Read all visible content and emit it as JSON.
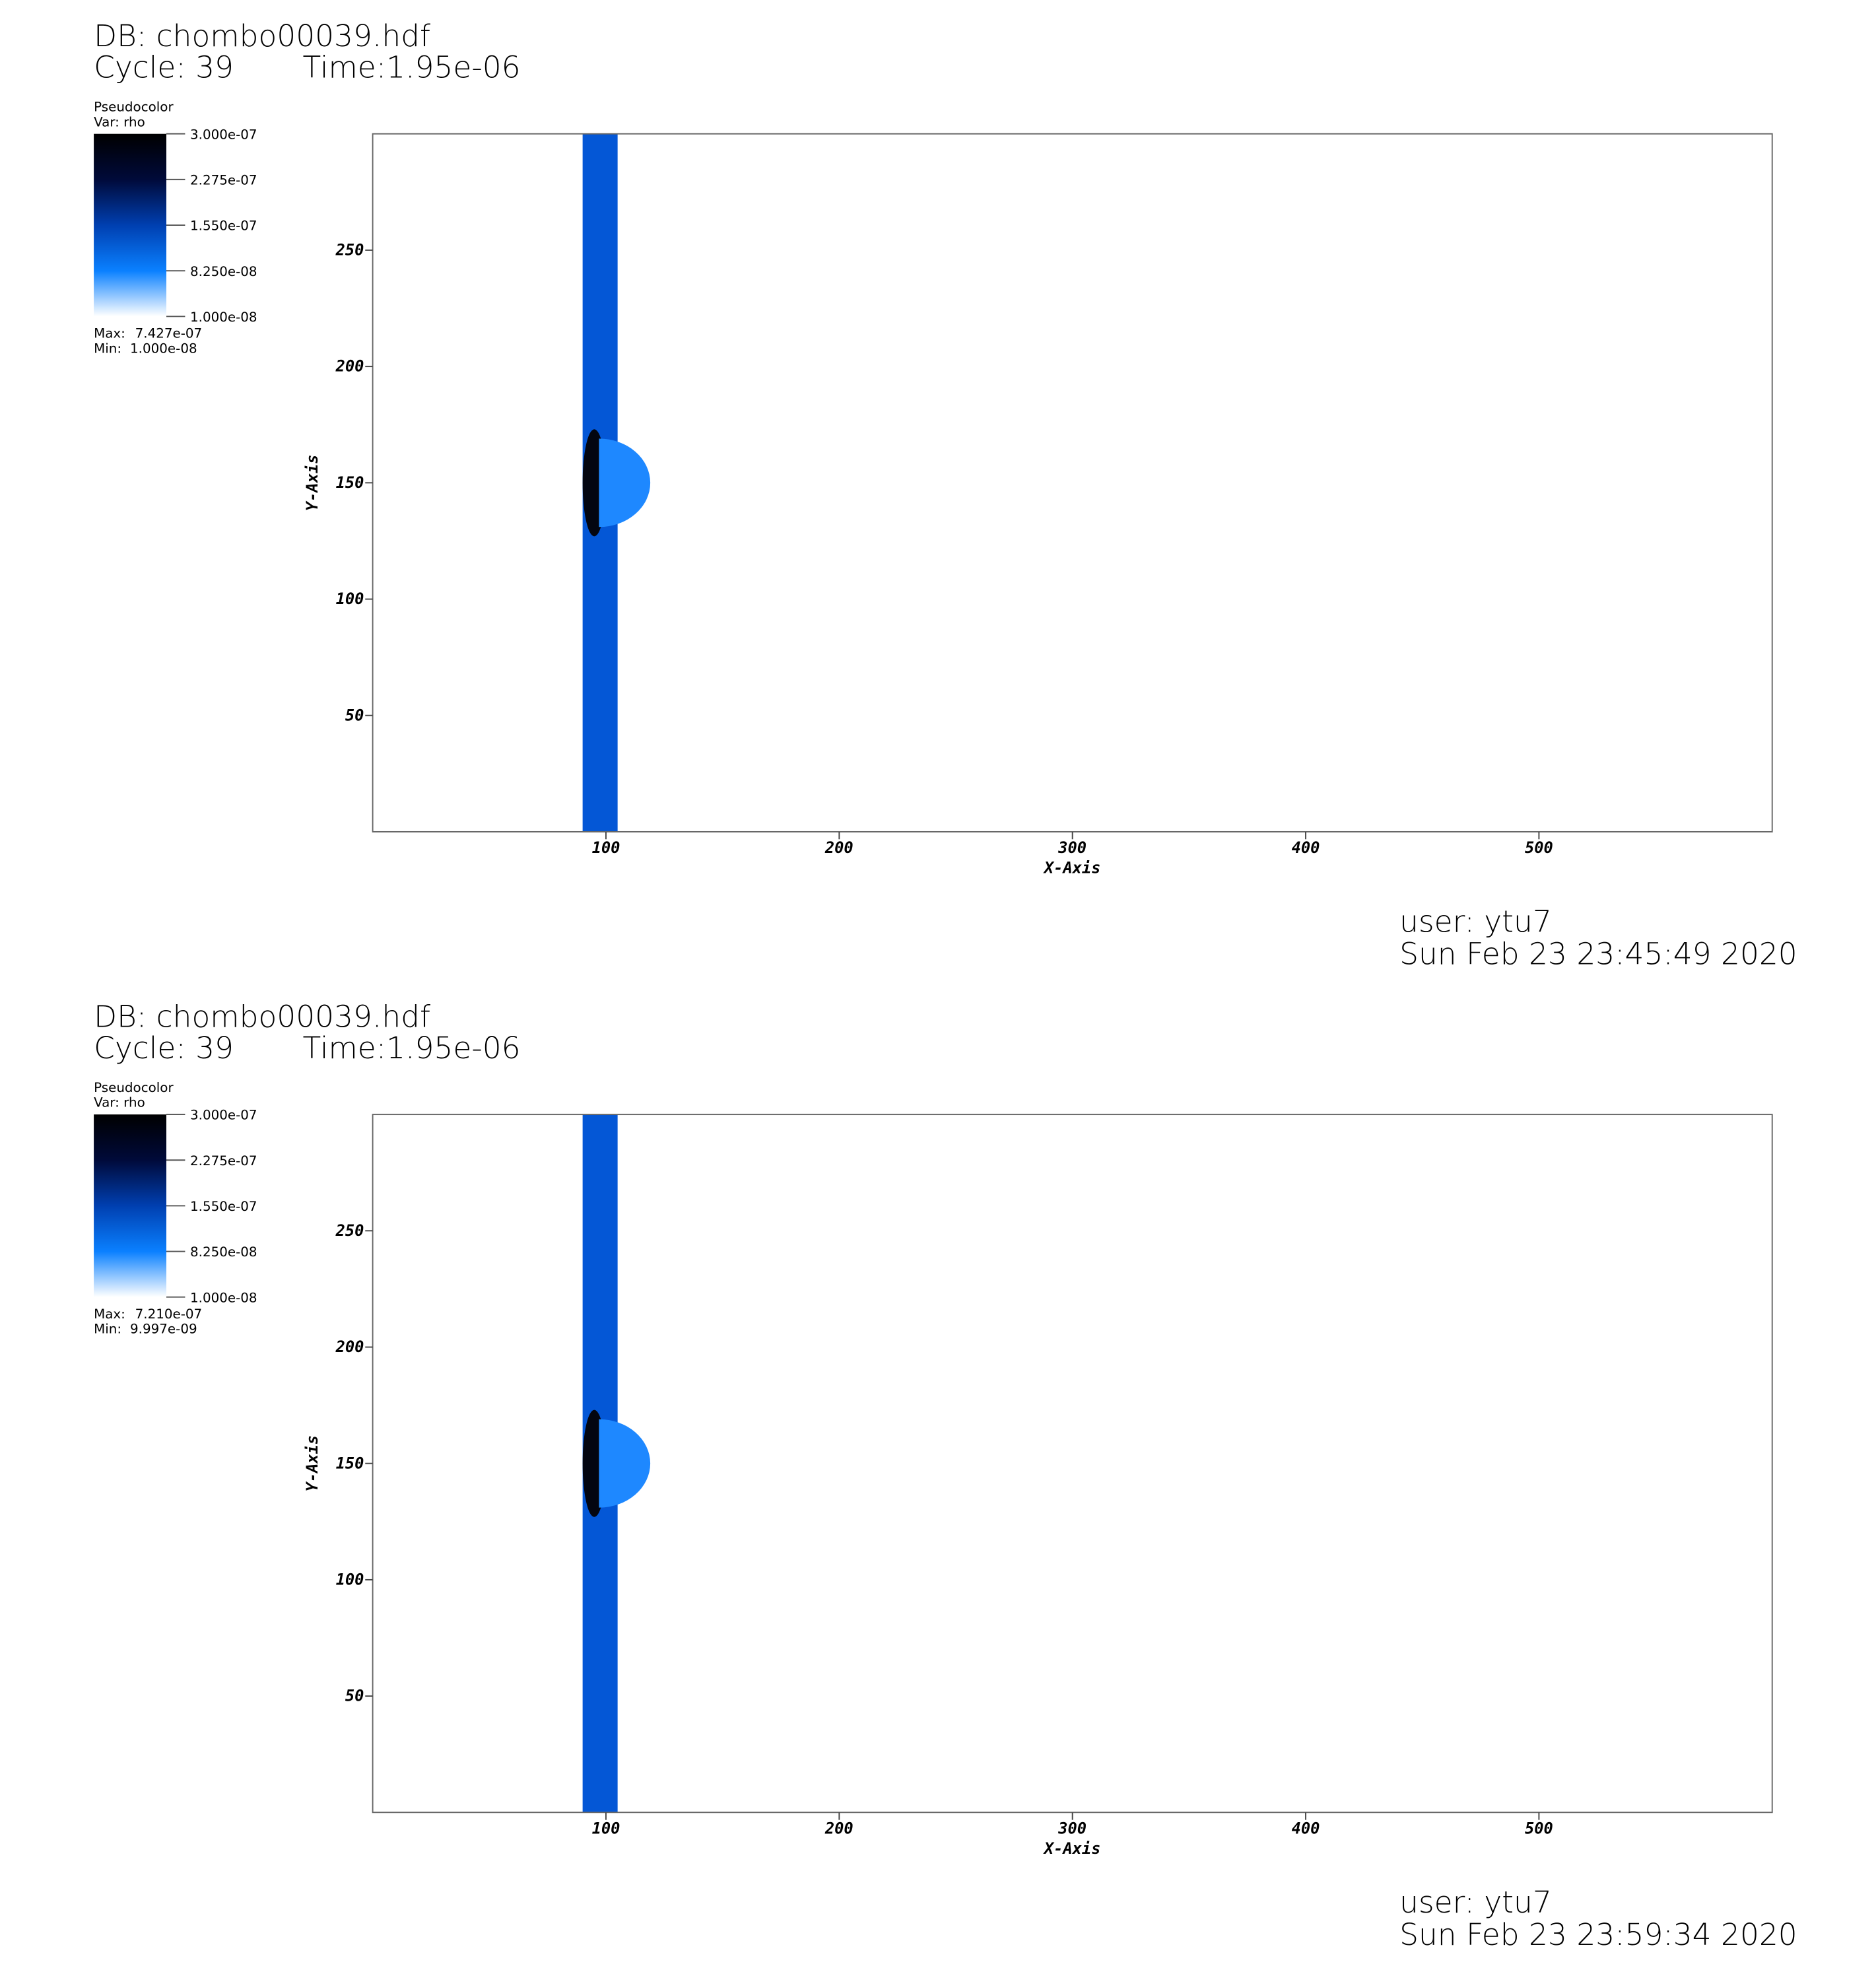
{
  "chart_data": [
    {
      "type": "pseudocolor",
      "title": "DB: chombo00039.hdf",
      "cycle": "Cycle: 39",
      "time": "Time:1.95e-06",
      "legend_title": "Pseudocolor",
      "variable": "Var: rho",
      "clim": [
        1e-08,
        3e-07
      ],
      "cticks": [
        {
          "value": 3e-07,
          "label": "3.000e-07"
        },
        {
          "value": 2.275e-07,
          "label": "2.275e-07"
        },
        {
          "value": 1.55e-07,
          "label": "1.550e-07"
        },
        {
          "value": 8.25e-08,
          "label": "8.250e-08"
        },
        {
          "value": 1e-08,
          "label": "1.000e-08"
        }
      ],
      "max_label": "Max:",
      "max": {
        "value": 7.427e-07,
        "label": "7.427e-07"
      },
      "min_label": "Min:",
      "min": {
        "value": 1e-08,
        "label": "1.000e-08"
      },
      "xlabel": "X-Axis",
      "ylabel": "Y-Axis",
      "xlim": [
        0,
        600
      ],
      "ylim": [
        0,
        300
      ],
      "xticks": [
        100,
        200,
        300,
        400,
        500
      ],
      "yticks": [
        50,
        100,
        150,
        200,
        250
      ],
      "band": {
        "x": [
          90,
          105
        ],
        "color": "#0457d6"
      },
      "front": {
        "x": 95,
        "y": 150,
        "rx": 5,
        "ry": 23,
        "color": "#030611"
      },
      "cap": {
        "x": 97,
        "y": 150,
        "rx": 22,
        "ry": 19,
        "color": "#1e88ff"
      },
      "user": "user: ytu7",
      "date": "Sun Feb 23 23:45:49 2020"
    },
    {
      "type": "pseudocolor",
      "title": "DB: chombo00039.hdf",
      "cycle": "Cycle: 39",
      "time": "Time:1.95e-06",
      "legend_title": "Pseudocolor",
      "variable": "Var: rho",
      "clim": [
        1e-08,
        3e-07
      ],
      "cticks": [
        {
          "value": 3e-07,
          "label": "3.000e-07"
        },
        {
          "value": 2.275e-07,
          "label": "2.275e-07"
        },
        {
          "value": 1.55e-07,
          "label": "1.550e-07"
        },
        {
          "value": 8.25e-08,
          "label": "8.250e-08"
        },
        {
          "value": 1e-08,
          "label": "1.000e-08"
        }
      ],
      "max_label": "Max:",
      "max": {
        "value": 7.21e-07,
        "label": "7.210e-07"
      },
      "min_label": "Min:",
      "min": {
        "value": 9.997e-09,
        "label": "9.997e-09"
      },
      "xlabel": "X-Axis",
      "ylabel": "Y-Axis",
      "xlim": [
        0,
        600
      ],
      "ylim": [
        0,
        300
      ],
      "xticks": [
        100,
        200,
        300,
        400,
        500
      ],
      "yticks": [
        50,
        100,
        150,
        200,
        250
      ],
      "band": {
        "x": [
          90,
          105
        ],
        "color": "#0457d6"
      },
      "front": {
        "x": 95,
        "y": 150,
        "rx": 5,
        "ry": 23,
        "color": "#030611"
      },
      "cap": {
        "x": 97,
        "y": 150,
        "rx": 22,
        "ry": 19,
        "color": "#1e88ff"
      },
      "user": "user: ytu7",
      "date": "Sun Feb 23 23:59:34 2020"
    }
  ]
}
